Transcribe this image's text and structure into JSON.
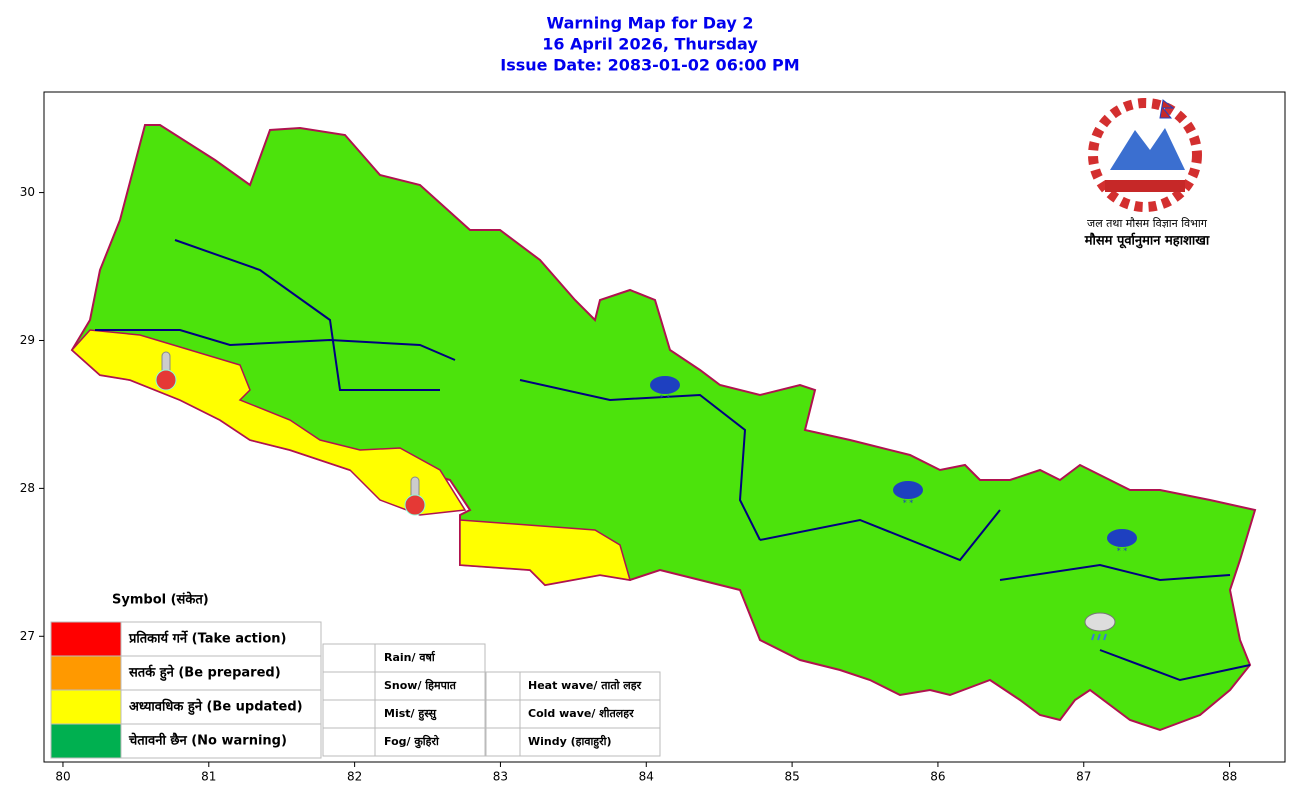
{
  "title": [
    "Warning Map for Day 2",
    "16 April 2026, Thursday",
    "Issue Date: 2083-01-02 06:00 PM"
  ],
  "map": {
    "xlim": [
      79.87,
      88.38
    ],
    "ylim": [
      26.15,
      30.68
    ],
    "xticks": [
      80,
      81,
      82,
      83,
      84,
      85,
      86,
      87,
      88
    ],
    "yticks": [
      27,
      28,
      29,
      30
    ],
    "region_colors": {
      "no_warning": "#4ce30c",
      "be_updated": "#ffff00"
    }
  },
  "agency": {
    "department": "जल तथा मौसम विज्ञान विभाग",
    "division": "मौसम पूर्वानुमान महाशाखा"
  },
  "legend": {
    "title": "Symbol (संकेत)",
    "levels": [
      {
        "label": "प्रतिकार्य गर्ने (Take action)",
        "color": "#ff0000"
      },
      {
        "label": "सतर्क हुने (Be prepared)",
        "color": "#ff9900"
      },
      {
        "label": "अध्यावधिक हुने (Be updated)",
        "color": "#ffff00"
      },
      {
        "label": "चेतावनी छैन (No warning)",
        "color": "#00b050"
      }
    ],
    "symbols_left": [
      "Rain/ वर्षा",
      "Snow/ हिमपात",
      "Mist/ हुस्सु",
      "Fog/ कुहिरो"
    ],
    "symbols_right": [
      "Heat wave/ तातो लहर",
      "Cold wave/ शीतलहर",
      "Windy (हावाहुरी)"
    ]
  }
}
